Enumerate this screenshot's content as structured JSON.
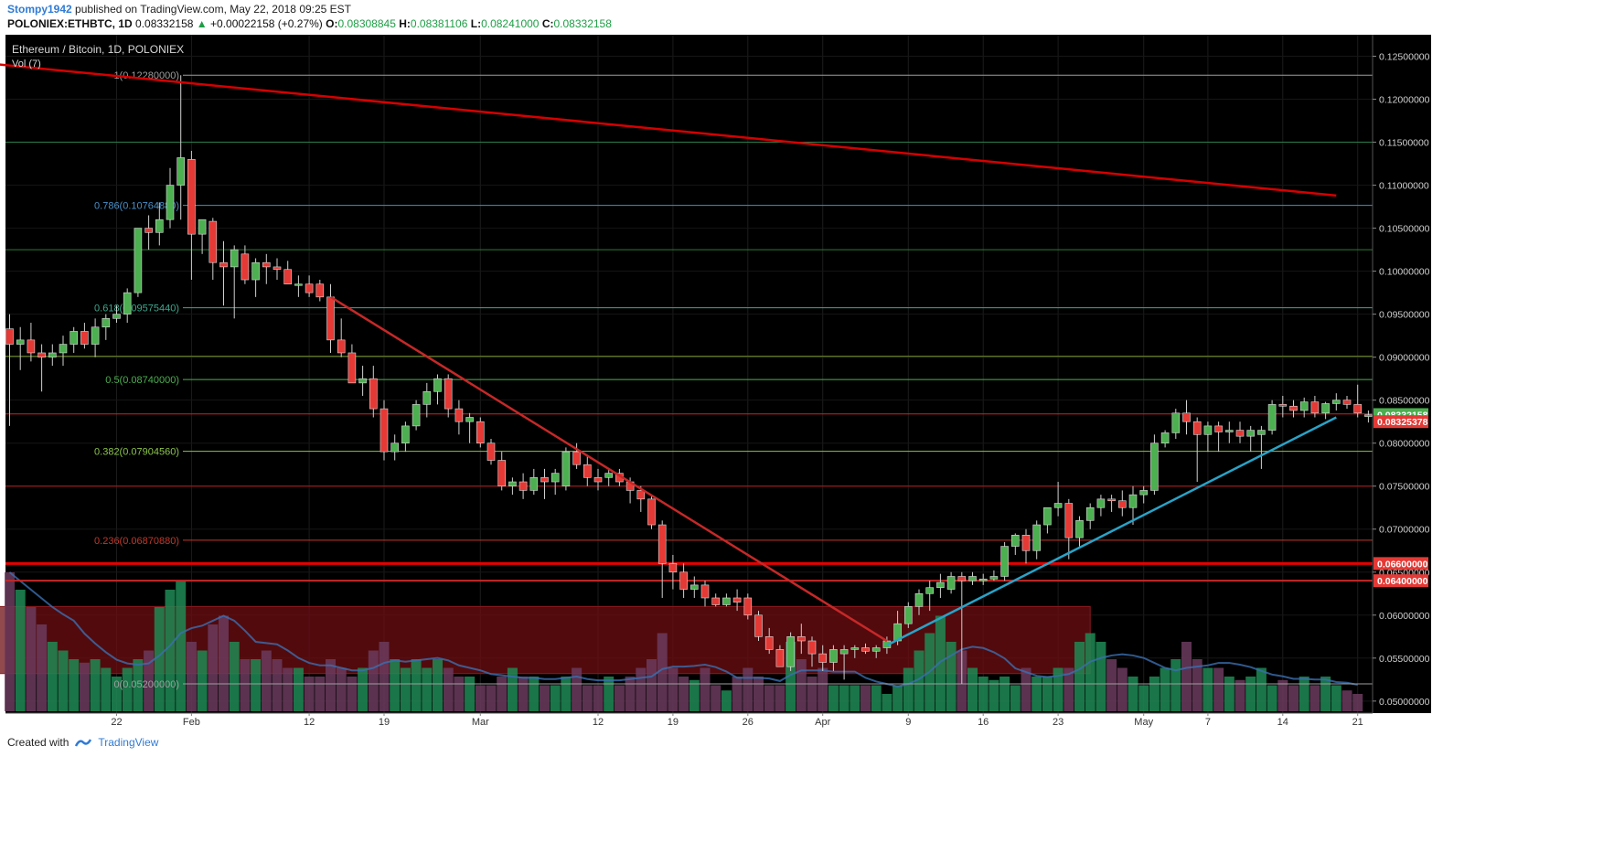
{
  "header": {
    "author": "Stompy1942",
    "published_text": "published on TradingView.com, May 22, 2018 09:25 EST",
    "symbol_line": "POLONIEX:ETHBTC, 1D",
    "last": "0.08332158",
    "arrow": "▲",
    "change": "+0.00022158 (+0.27%)",
    "o_label": "O:",
    "o_value": "0.08308845",
    "h_label": "H:",
    "h_value": "0.08381106",
    "l_label": "L:",
    "l_value": "0.08241000",
    "c_label": "C:",
    "c_value": "0.08332158"
  },
  "footer": {
    "created_with": "Created with",
    "brand": "TradingView"
  },
  "colors": {
    "background": "#000000",
    "up": "#4caf50",
    "down": "#e53935",
    "trendline_red": "#d50000",
    "trendline_blue": "#29a3c7",
    "volume_up": "#1e8a55",
    "volume_down": "#6b3b5e",
    "zone": "#6e0e12"
  },
  "chart_data": {
    "type": "candlestick",
    "title": "Ethereum / Bitcoin, 1D, POLONIEX",
    "volume_label": "Vol (7)",
    "ylim": [
      0.0486,
      0.1275
    ],
    "y_ticks": [
      "0.12500000",
      "0.12000000",
      "0.11500000",
      "0.11000000",
      "0.10500000",
      "0.10000000",
      "0.09500000",
      "0.09000000",
      "0.08500000",
      "0.08000000",
      "0.07500000",
      "0.07000000",
      "0.06500000",
      "0.06000000",
      "0.05500000",
      "0.05000000"
    ],
    "x_labels": [
      {
        "i": 10,
        "label": "22"
      },
      {
        "i": 17,
        "label": "Feb"
      },
      {
        "i": 28,
        "label": "12"
      },
      {
        "i": 35,
        "label": "19"
      },
      {
        "i": 44,
        "label": "Mar"
      },
      {
        "i": 55,
        "label": "12"
      },
      {
        "i": 62,
        "label": "19"
      },
      {
        "i": 69,
        "label": "26"
      },
      {
        "i": 76,
        "label": "Apr"
      },
      {
        "i": 84,
        "label": "9"
      },
      {
        "i": 91,
        "label": "16"
      },
      {
        "i": 98,
        "label": "23"
      },
      {
        "i": 106,
        "label": "May"
      },
      {
        "i": 112,
        "label": "7"
      },
      {
        "i": 119,
        "label": "14"
      },
      {
        "i": 126,
        "label": "21"
      }
    ],
    "price_tags": [
      {
        "value": "0.08332158",
        "price": 0.08332158,
        "color": "#4caf50"
      },
      {
        "value": "0.08325378",
        "price": 0.0825,
        "color": "#e53935"
      },
      {
        "value": "0.06600000",
        "price": 0.066,
        "color": "#e53935"
      },
      {
        "value": "0.06400000",
        "price": 0.064,
        "color": "#e53935"
      }
    ],
    "fib_levels": [
      {
        "label": "1(0.12280000)",
        "price": 0.1228,
        "color": "#9e9e9e"
      },
      {
        "label": "0.786(0.10764880)",
        "price": 0.10765,
        "color": "#4a8fc9"
      },
      {
        "label": "0.618(0.09575440)",
        "price": 0.09575,
        "color": "#3fa88c"
      },
      {
        "label": "0.5(0.08740000)",
        "price": 0.0874,
        "color": "#4caf50"
      },
      {
        "label": "0.382(0.07904560)",
        "price": 0.07905,
        "color": "#8bc34a"
      },
      {
        "label": "0.236(0.06870880)",
        "price": 0.06871,
        "color": "#c0392b"
      },
      {
        "label": "0(0.05200000)",
        "price": 0.052,
        "color": "#9e9e9e"
      }
    ],
    "horizontal_lines": [
      {
        "price": 0.115,
        "color": "#2e7d4f"
      },
      {
        "price": 0.1025,
        "color": "#2e7d32"
      },
      {
        "price": 0.0901,
        "color": "#7c9a2a"
      },
      {
        "price": 0.0834,
        "color": "#c62828"
      },
      {
        "price": 0.075,
        "color": "#b71c1c"
      }
    ],
    "support_lines": [
      {
        "price": 0.066,
        "color": "#e60000",
        "width": 3
      },
      {
        "price": 0.064,
        "color": "#c62828",
        "width": 2
      }
    ],
    "zone": {
      "from_index": -1,
      "to_index": 101,
      "top": 0.061,
      "bottom": 0.0532
    },
    "trendlines": [
      {
        "name": "long-term resistance",
        "i1": -17,
        "p1": 0.126,
        "i2": 124,
        "p2": 0.1088,
        "color": "#d50000"
      },
      {
        "name": "downtrend",
        "i1": 30,
        "p1": 0.097,
        "i2": 82,
        "p2": 0.057,
        "color": "#c62828"
      },
      {
        "name": "uptrend",
        "i1": 82,
        "p1": 0.0565,
        "i2": 124,
        "p2": 0.083,
        "color": "#29a3c7"
      }
    ],
    "candles": [
      [
        0.0933,
        0.095,
        0.082,
        0.0915
      ],
      [
        0.0915,
        0.0935,
        0.0885,
        0.092
      ],
      [
        0.092,
        0.094,
        0.0895,
        0.0905
      ],
      [
        0.0905,
        0.0915,
        0.086,
        0.09
      ],
      [
        0.09,
        0.0915,
        0.089,
        0.0905
      ],
      [
        0.0905,
        0.0925,
        0.089,
        0.0915
      ],
      [
        0.0915,
        0.0935,
        0.0905,
        0.093
      ],
      [
        0.093,
        0.094,
        0.091,
        0.0915
      ],
      [
        0.0915,
        0.0945,
        0.09,
        0.0935
      ],
      [
        0.0935,
        0.095,
        0.092,
        0.0945
      ],
      [
        0.0945,
        0.096,
        0.094,
        0.095
      ],
      [
        0.095,
        0.098,
        0.094,
        0.0975
      ],
      [
        0.0975,
        0.105,
        0.097,
        0.105
      ],
      [
        0.105,
        0.1065,
        0.1025,
        0.1045
      ],
      [
        0.1045,
        0.108,
        0.103,
        0.106
      ],
      [
        0.106,
        0.112,
        0.105,
        0.11
      ],
      [
        0.11,
        0.1228,
        0.106,
        0.1132
      ],
      [
        0.113,
        0.114,
        0.099,
        0.1043
      ],
      [
        0.1043,
        0.106,
        0.102,
        0.106
      ],
      [
        0.1058,
        0.1062,
        0.099,
        0.101
      ],
      [
        0.101,
        0.1035,
        0.096,
        0.1005
      ],
      [
        0.1005,
        0.103,
        0.0945,
        0.1025
      ],
      [
        0.102,
        0.103,
        0.0985,
        0.099
      ],
      [
        0.099,
        0.1015,
        0.097,
        0.101
      ],
      [
        0.101,
        0.102,
        0.0985,
        0.1005
      ],
      [
        0.1005,
        0.1015,
        0.099,
        0.1002
      ],
      [
        0.1002,
        0.1012,
        0.0985,
        0.0985
      ],
      [
        0.0985,
        0.0995,
        0.097,
        0.0985
      ],
      [
        0.0985,
        0.0995,
        0.097,
        0.0975
      ],
      [
        0.0985,
        0.099,
        0.0965,
        0.097
      ],
      [
        0.097,
        0.0985,
        0.0905,
        0.092
      ],
      [
        0.092,
        0.0945,
        0.09,
        0.0905
      ],
      [
        0.0905,
        0.0915,
        0.087,
        0.087
      ],
      [
        0.087,
        0.089,
        0.0855,
        0.0875
      ],
      [
        0.0875,
        0.089,
        0.083,
        0.084
      ],
      [
        0.084,
        0.085,
        0.078,
        0.079
      ],
      [
        0.079,
        0.081,
        0.078,
        0.08
      ],
      [
        0.08,
        0.0825,
        0.079,
        0.082
      ],
      [
        0.082,
        0.085,
        0.0815,
        0.0845
      ],
      [
        0.0845,
        0.087,
        0.083,
        0.086
      ],
      [
        0.086,
        0.088,
        0.0845,
        0.0875
      ],
      [
        0.0875,
        0.088,
        0.083,
        0.084
      ],
      [
        0.084,
        0.085,
        0.081,
        0.0825
      ],
      [
        0.0825,
        0.0835,
        0.08,
        0.083
      ],
      [
        0.0825,
        0.083,
        0.0795,
        0.08
      ],
      [
        0.08,
        0.0805,
        0.0775,
        0.078
      ],
      [
        0.078,
        0.079,
        0.0745,
        0.075
      ],
      [
        0.075,
        0.076,
        0.074,
        0.0755
      ],
      [
        0.0755,
        0.0765,
        0.0735,
        0.0745
      ],
      [
        0.0745,
        0.077,
        0.074,
        0.076
      ],
      [
        0.076,
        0.077,
        0.0735,
        0.0755
      ],
      [
        0.0755,
        0.077,
        0.074,
        0.0765
      ],
      [
        0.075,
        0.0795,
        0.0745,
        0.079
      ],
      [
        0.079,
        0.08,
        0.077,
        0.0775
      ],
      [
        0.0775,
        0.0785,
        0.075,
        0.076
      ],
      [
        0.076,
        0.077,
        0.0745,
        0.0755
      ],
      [
        0.076,
        0.077,
        0.075,
        0.0765
      ],
      [
        0.0765,
        0.077,
        0.075,
        0.0755
      ],
      [
        0.0755,
        0.076,
        0.073,
        0.0745
      ],
      [
        0.0745,
        0.075,
        0.072,
        0.0735
      ],
      [
        0.0735,
        0.074,
        0.07,
        0.0705
      ],
      [
        0.0705,
        0.071,
        0.062,
        0.066
      ],
      [
        0.066,
        0.067,
        0.063,
        0.065
      ],
      [
        0.065,
        0.066,
        0.062,
        0.063
      ],
      [
        0.063,
        0.0645,
        0.062,
        0.0635
      ],
      [
        0.0635,
        0.064,
        0.061,
        0.062
      ],
      [
        0.062,
        0.0625,
        0.061,
        0.0612
      ],
      [
        0.0612,
        0.0625,
        0.061,
        0.062
      ],
      [
        0.062,
        0.063,
        0.0605,
        0.0615
      ],
      [
        0.062,
        0.0625,
        0.0595,
        0.06
      ],
      [
        0.06,
        0.0605,
        0.057,
        0.0575
      ],
      [
        0.0575,
        0.0585,
        0.0555,
        0.056
      ],
      [
        0.056,
        0.0565,
        0.054,
        0.054
      ],
      [
        0.054,
        0.058,
        0.0535,
        0.0575
      ],
      [
        0.0575,
        0.059,
        0.0555,
        0.057
      ],
      [
        0.057,
        0.0575,
        0.054,
        0.0555
      ],
      [
        0.0555,
        0.0565,
        0.0535,
        0.0545
      ],
      [
        0.0545,
        0.0565,
        0.0535,
        0.056
      ],
      [
        0.0555,
        0.0565,
        0.0525,
        0.056
      ],
      [
        0.056,
        0.0565,
        0.055,
        0.0562
      ],
      [
        0.0562,
        0.0567,
        0.0555,
        0.0558
      ],
      [
        0.0558,
        0.0565,
        0.055,
        0.0562
      ],
      [
        0.0562,
        0.0575,
        0.0555,
        0.057
      ],
      [
        0.057,
        0.0605,
        0.0565,
        0.059
      ],
      [
        0.059,
        0.0615,
        0.0585,
        0.061
      ],
      [
        0.061,
        0.063,
        0.06,
        0.0625
      ],
      [
        0.0625,
        0.064,
        0.0605,
        0.0632
      ],
      [
        0.0632,
        0.0648,
        0.062,
        0.0638
      ],
      [
        0.063,
        0.065,
        0.0625,
        0.0645
      ],
      [
        0.0645,
        0.065,
        0.052,
        0.064
      ],
      [
        0.064,
        0.065,
        0.0635,
        0.0645
      ],
      [
        0.064,
        0.0648,
        0.0635,
        0.0642
      ],
      [
        0.0642,
        0.0652,
        0.064,
        0.0645
      ],
      [
        0.0645,
        0.0685,
        0.064,
        0.068
      ],
      [
        0.068,
        0.0695,
        0.067,
        0.0693
      ],
      [
        0.0693,
        0.07,
        0.066,
        0.0675
      ],
      [
        0.0675,
        0.071,
        0.0665,
        0.0705
      ],
      [
        0.0705,
        0.0725,
        0.0695,
        0.0725
      ],
      [
        0.0725,
        0.0755,
        0.0715,
        0.073
      ],
      [
        0.073,
        0.0735,
        0.0665,
        0.069
      ],
      [
        0.069,
        0.0715,
        0.068,
        0.071
      ],
      [
        0.071,
        0.073,
        0.07,
        0.0725
      ],
      [
        0.0725,
        0.074,
        0.0715,
        0.0735
      ],
      [
        0.0735,
        0.074,
        0.072,
        0.0733
      ],
      [
        0.0733,
        0.0745,
        0.0715,
        0.0725
      ],
      [
        0.0725,
        0.075,
        0.0705,
        0.074
      ],
      [
        0.074,
        0.075,
        0.073,
        0.0745
      ],
      [
        0.0745,
        0.081,
        0.074,
        0.08
      ],
      [
        0.08,
        0.0815,
        0.0795,
        0.0812
      ],
      [
        0.0812,
        0.084,
        0.0805,
        0.0835
      ],
      [
        0.0835,
        0.085,
        0.081,
        0.0825
      ],
      [
        0.0825,
        0.083,
        0.0755,
        0.081
      ],
      [
        0.081,
        0.0825,
        0.079,
        0.082
      ],
      [
        0.082,
        0.0825,
        0.079,
        0.0813
      ],
      [
        0.0813,
        0.0825,
        0.08,
        0.0815
      ],
      [
        0.0815,
        0.0825,
        0.08,
        0.0808
      ],
      [
        0.0808,
        0.082,
        0.079,
        0.0815
      ],
      [
        0.081,
        0.082,
        0.077,
        0.0815
      ],
      [
        0.0815,
        0.085,
        0.081,
        0.0845
      ],
      [
        0.0845,
        0.0855,
        0.083,
        0.0843
      ],
      [
        0.0843,
        0.085,
        0.083,
        0.0838
      ],
      [
        0.0838,
        0.0853,
        0.083,
        0.0848
      ],
      [
        0.0848,
        0.0855,
        0.083,
        0.0835
      ],
      [
        0.0835,
        0.0848,
        0.0828,
        0.0846
      ],
      [
        0.0846,
        0.0858,
        0.0838,
        0.085
      ],
      [
        0.085,
        0.0855,
        0.084,
        0.0845
      ],
      [
        0.0845,
        0.0868,
        0.083,
        0.0835
      ],
      [
        0.0831,
        0.0838,
        0.0824,
        0.0833
      ]
    ],
    "volume": [
      0.8,
      0.7,
      0.6,
      0.5,
      0.4,
      0.35,
      0.3,
      0.28,
      0.3,
      0.25,
      0.2,
      0.25,
      0.3,
      0.35,
      0.6,
      0.7,
      0.75,
      0.4,
      0.35,
      0.5,
      0.55,
      0.4,
      0.3,
      0.3,
      0.35,
      0.3,
      0.25,
      0.25,
      0.2,
      0.2,
      0.3,
      0.25,
      0.2,
      0.25,
      0.35,
      0.4,
      0.3,
      0.25,
      0.3,
      0.25,
      0.3,
      0.25,
      0.2,
      0.2,
      0.15,
      0.15,
      0.2,
      0.25,
      0.2,
      0.2,
      0.15,
      0.15,
      0.2,
      0.25,
      0.15,
      0.15,
      0.2,
      0.15,
      0.2,
      0.25,
      0.3,
      0.45,
      0.25,
      0.2,
      0.18,
      0.25,
      0.15,
      0.12,
      0.2,
      0.25,
      0.2,
      0.15,
      0.15,
      0.4,
      0.3,
      0.2,
      0.25,
      0.15,
      0.15,
      0.15,
      0.15,
      0.15,
      0.1,
      0.15,
      0.25,
      0.35,
      0.45,
      0.55,
      0.4,
      0.35,
      0.25,
      0.2,
      0.18,
      0.2,
      0.15,
      0.25,
      0.2,
      0.2,
      0.25,
      0.25,
      0.4,
      0.45,
      0.4,
      0.3,
      0.25,
      0.2,
      0.15,
      0.2,
      0.25,
      0.3,
      0.4,
      0.3,
      0.25,
      0.25,
      0.2,
      0.18,
      0.2,
      0.25,
      0.15,
      0.18,
      0.15,
      0.2,
      0.15,
      0.2,
      0.15,
      0.12,
      0.1
    ]
  }
}
